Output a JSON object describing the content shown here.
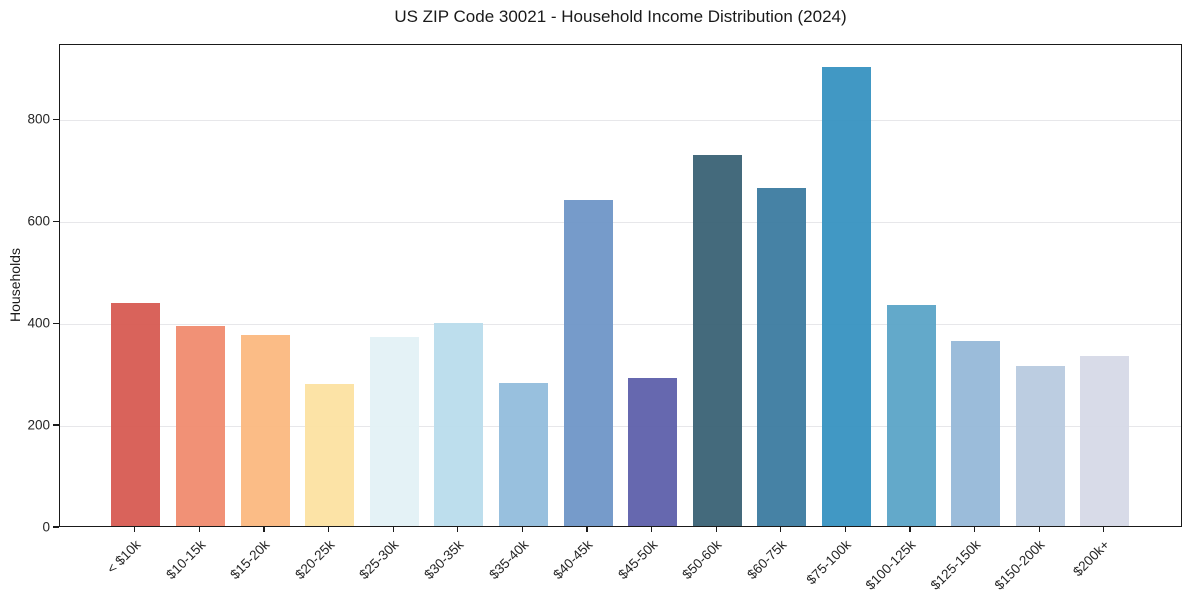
{
  "chart_data": {
    "type": "bar",
    "title": "US ZIP Code 30021 - Household Income Distribution (2024)",
    "xlabel": "",
    "ylabel": "Households",
    "categories": [
      "< $10k",
      "$10-15k",
      "$15-20k",
      "$20-25k",
      "$25-30k",
      "$30-35k",
      "$35-40k",
      "$40-45k",
      "$45-50k",
      "$50-60k",
      "$60-75k",
      "$75-100k",
      "$100-125k",
      "$125-150k",
      "$150-200k",
      "$200k+"
    ],
    "values": [
      437,
      392,
      374,
      278,
      371,
      398,
      280,
      639,
      290,
      729,
      664,
      900,
      433,
      364,
      315,
      333
    ],
    "bar_colors": [
      "#d6574f",
      "#f0896c",
      "#fbb77d",
      "#fce19f",
      "#e2f1f5",
      "#b8dcec",
      "#90bbdb",
      "#6c93c6",
      "#5a5ca9",
      "#365f72",
      "#38789e",
      "#3390c0",
      "#57a3c6",
      "#93b7d7",
      "#b7c9df",
      "#d5d8e6"
    ],
    "yticks": [
      0,
      200,
      400,
      600,
      800
    ],
    "ylim": [
      0,
      948
    ],
    "grid": "horizontal",
    "gridline_color": "#e7e7ea",
    "axis_color": "#1a1a1a",
    "x_label_rotation_deg": 45,
    "legend": "none"
  }
}
